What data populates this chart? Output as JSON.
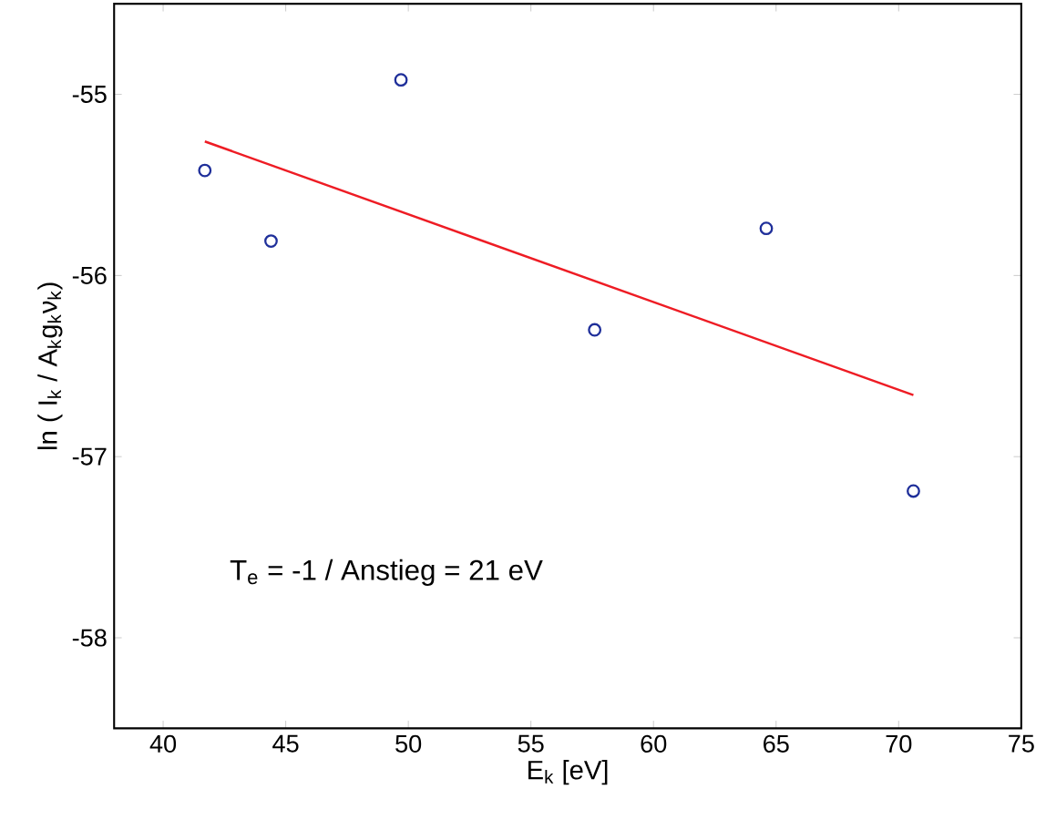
{
  "chart_data": {
    "type": "scatter",
    "xlabel": "E$_{k}$ [eV]",
    "ylabel": "ln ( I$_{k}$ / A$_{k}$g$_{k}$ν$_{k}$)",
    "series": [
      {
        "color": "#1f2f9a",
        "marker": "circle",
        "x": [
          41.7,
          44.4,
          49.7,
          57.6,
          64.6,
          70.6
        ],
        "values": [
          -55.42,
          -55.81,
          -54.92,
          -56.3,
          -55.74,
          -57.19
        ]
      },
      {
        "type": "line",
        "color": "#ee1c24",
        "marker": "none",
        "x": [
          41.7,
          70.6
        ],
        "values": [
          -55.26,
          -56.66
        ]
      }
    ],
    "annotations": [
      "T$_{e}$ = -1 / Anstieg = 21 eV"
    ],
    "xlim": [
      38,
      75
    ],
    "ylim": [
      -58.5,
      -54.5
    ],
    "xticks": [
      40,
      45,
      50,
      55,
      60,
      65,
      70,
      75
    ],
    "yticks": [
      -58,
      -57,
      -56,
      -55
    ],
    "grid": false
  }
}
